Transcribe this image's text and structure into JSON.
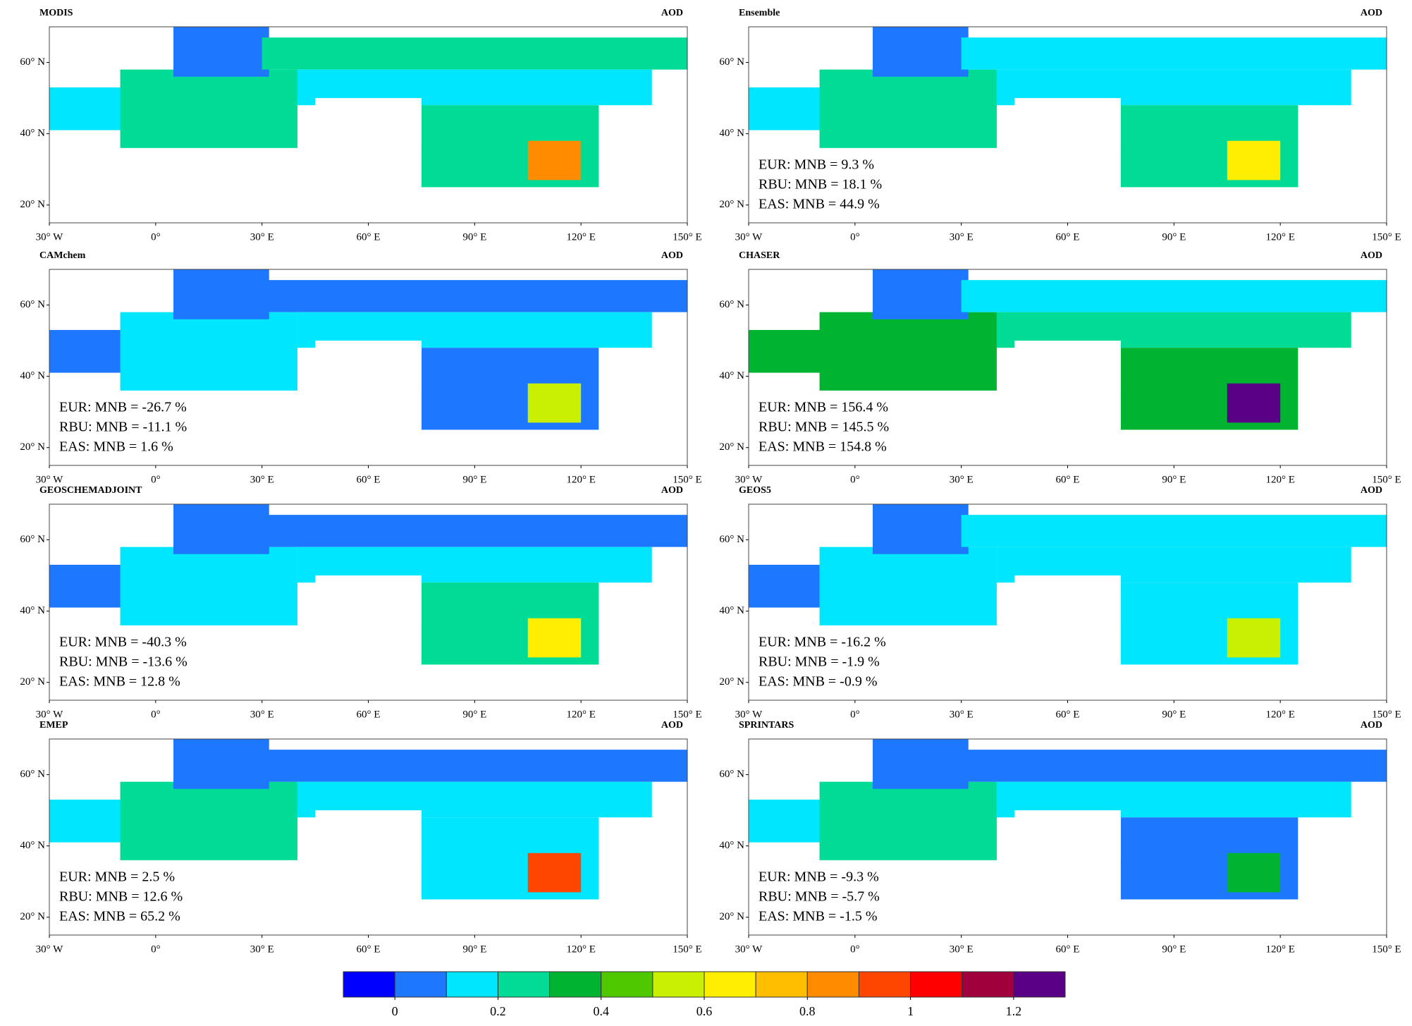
{
  "panel_label": "AOD",
  "lon_lim": [
    -30,
    150
  ],
  "lat_lim": [
    15,
    70
  ],
  "lon_ticks": [
    {
      "value": -30,
      "label": "30° W"
    },
    {
      "value": 0,
      "label": "0°"
    },
    {
      "value": 30,
      "label": "30° E"
    },
    {
      "value": 60,
      "label": "60° E"
    },
    {
      "value": 90,
      "label": "90° E"
    },
    {
      "value": 120,
      "label": "120° E"
    },
    {
      "value": 150,
      "label": "150° E"
    }
  ],
  "lat_ticks": [
    {
      "value": 20,
      "label": "20° N"
    },
    {
      "value": 40,
      "label": "40° N"
    },
    {
      "value": 60,
      "label": "60° N"
    }
  ],
  "panels": [
    {
      "title": "MODIS",
      "stats": []
    },
    {
      "title": "Ensemble",
      "stats": [
        "EUR: MNB = 9.3 %",
        "RBU: MNB = 18.1 %",
        "EAS: MNB = 44.9 %"
      ]
    },
    {
      "title": "CAMchem",
      "stats": [
        "EUR: MNB = -26.7 %",
        "RBU: MNB = -11.1 %",
        "EAS: MNB = 1.6 %"
      ]
    },
    {
      "title": "CHASER",
      "stats": [
        "EUR: MNB = 156.4 %",
        "RBU: MNB = 145.5 %",
        "EAS: MNB = 154.8 %"
      ]
    },
    {
      "title": "GEOSCHEMADJOINT",
      "stats": [
        "EUR: MNB = -40.3 %",
        "RBU: MNB = -13.6 %",
        "EAS: MNB = 12.8 %"
      ]
    },
    {
      "title": "GEOS5",
      "stats": [
        "EUR: MNB = -16.2 %",
        "RBU: MNB = -1.9 %",
        "EAS: MNB = -0.9 %"
      ]
    },
    {
      "title": "EMEP",
      "stats": [
        "EUR: MNB = 2.5 %",
        "RBU: MNB = 12.6 %",
        "EAS: MNB = 65.2 %"
      ]
    },
    {
      "title": "SPRINTARS",
      "stats": [
        "EUR: MNB = -9.3 %",
        "RBU: MNB = -5.7 %",
        "EAS: MNB = -1.5 %"
      ]
    }
  ],
  "colorbar": {
    "lim": [
      -0.1,
      1.3
    ],
    "ticks": [
      0,
      0.2,
      0.4,
      0.6,
      0.8,
      1,
      1.2
    ],
    "colors": [
      "#0000ff",
      "#1e78ff",
      "#00e6ff",
      "#00dc96",
      "#00b432",
      "#50c800",
      "#c8f000",
      "#ffee00",
      "#ffbe00",
      "#ff8c00",
      "#ff4600",
      "#ff0000",
      "#a0003c",
      "#5a0087"
    ]
  }
}
